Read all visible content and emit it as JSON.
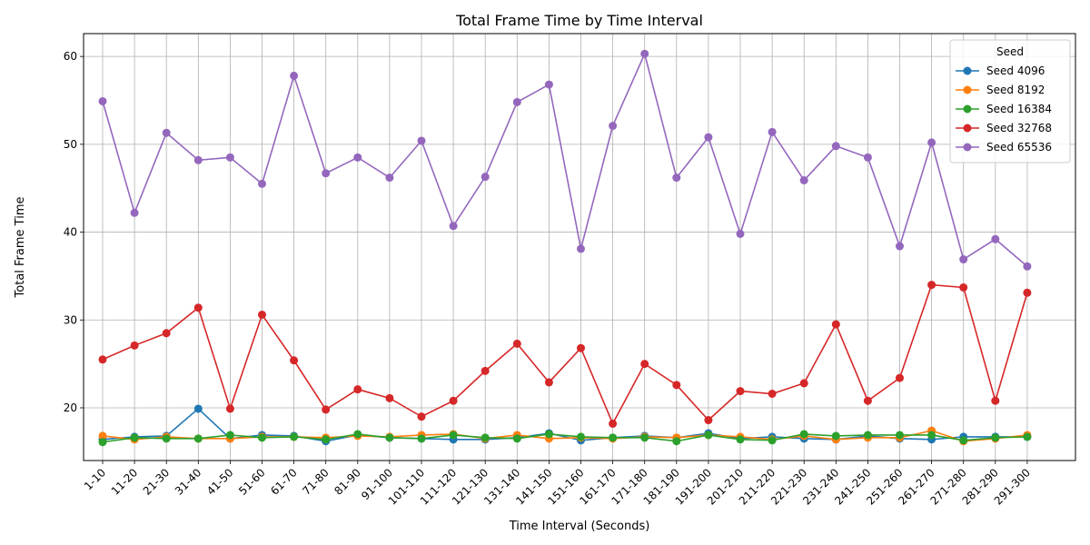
{
  "chart_data": {
    "type": "line",
    "title": "Total Frame Time by Time Interval",
    "xlabel": "Time Interval (Seconds)",
    "ylabel": "Total Frame Time",
    "ylim": [
      14,
      62.6
    ],
    "yticks": [
      20,
      30,
      40,
      50,
      60
    ],
    "grid": true,
    "legend": {
      "title": "Seed",
      "placement": "top-right"
    },
    "categories": [
      "1-10",
      "11-20",
      "21-30",
      "31-40",
      "41-50",
      "51-60",
      "61-70",
      "71-80",
      "81-90",
      "91-100",
      "101-110",
      "111-120",
      "121-130",
      "131-140",
      "141-150",
      "151-160",
      "161-170",
      "171-180",
      "181-190",
      "191-200",
      "201-210",
      "211-220",
      "221-230",
      "231-240",
      "241-250",
      "251-260",
      "261-270",
      "271-280",
      "281-290",
      "291-300"
    ],
    "series": [
      {
        "name": "Seed 4096",
        "color": "#1f77b4",
        "values": [
          16.4,
          16.7,
          16.8,
          19.9,
          16.5,
          16.9,
          16.8,
          16.2,
          16.9,
          16.6,
          16.5,
          16.4,
          16.4,
          16.6,
          17.1,
          16.3,
          16.6,
          16.8,
          16.6,
          17.1,
          16.5,
          16.7,
          16.5,
          16.4,
          16.8,
          16.5,
          16.4,
          16.7,
          16.7,
          16.7
        ]
      },
      {
        "name": "Seed 8192",
        "color": "#ff7f0e",
        "values": [
          16.8,
          16.4,
          16.7,
          16.5,
          16.5,
          16.7,
          16.7,
          16.6,
          16.8,
          16.7,
          16.9,
          17.0,
          16.5,
          16.9,
          16.5,
          16.6,
          16.5,
          16.7,
          16.6,
          16.9,
          16.7,
          16.4,
          16.8,
          16.4,
          16.6,
          16.6,
          17.4,
          16.2,
          16.5,
          16.9
        ]
      },
      {
        "name": "Seed 16384",
        "color": "#2ca02c",
        "values": [
          16.1,
          16.6,
          16.5,
          16.5,
          16.9,
          16.6,
          16.7,
          16.4,
          17.0,
          16.6,
          16.5,
          16.9,
          16.6,
          16.5,
          17.0,
          16.7,
          16.6,
          16.6,
          16.2,
          16.9,
          16.4,
          16.3,
          17.0,
          16.8,
          16.9,
          16.9,
          16.9,
          16.3,
          16.6,
          16.7
        ]
      },
      {
        "name": "Seed 32768",
        "color": "#d62728",
        "values": [
          25.5,
          27.1,
          28.5,
          31.4,
          19.9,
          30.6,
          25.4,
          19.8,
          22.1,
          21.1,
          19.0,
          20.8,
          24.2,
          27.3,
          22.9,
          26.8,
          18.2,
          25.0,
          22.6,
          18.6,
          21.9,
          21.6,
          22.8,
          29.5,
          20.8,
          23.4,
          34.0,
          33.7,
          20.8,
          33.1
        ]
      },
      {
        "name": "Seed 65536",
        "color": "#9467bd",
        "values": [
          54.9,
          42.2,
          51.3,
          48.2,
          48.5,
          45.5,
          57.8,
          46.7,
          48.5,
          46.2,
          50.4,
          40.7,
          46.3,
          54.8,
          56.8,
          38.1,
          52.1,
          60.3,
          46.2,
          50.8,
          39.8,
          51.4,
          45.9,
          49.8,
          48.5,
          38.4,
          50.2,
          36.9,
          39.2,
          36.1
        ]
      }
    ]
  }
}
